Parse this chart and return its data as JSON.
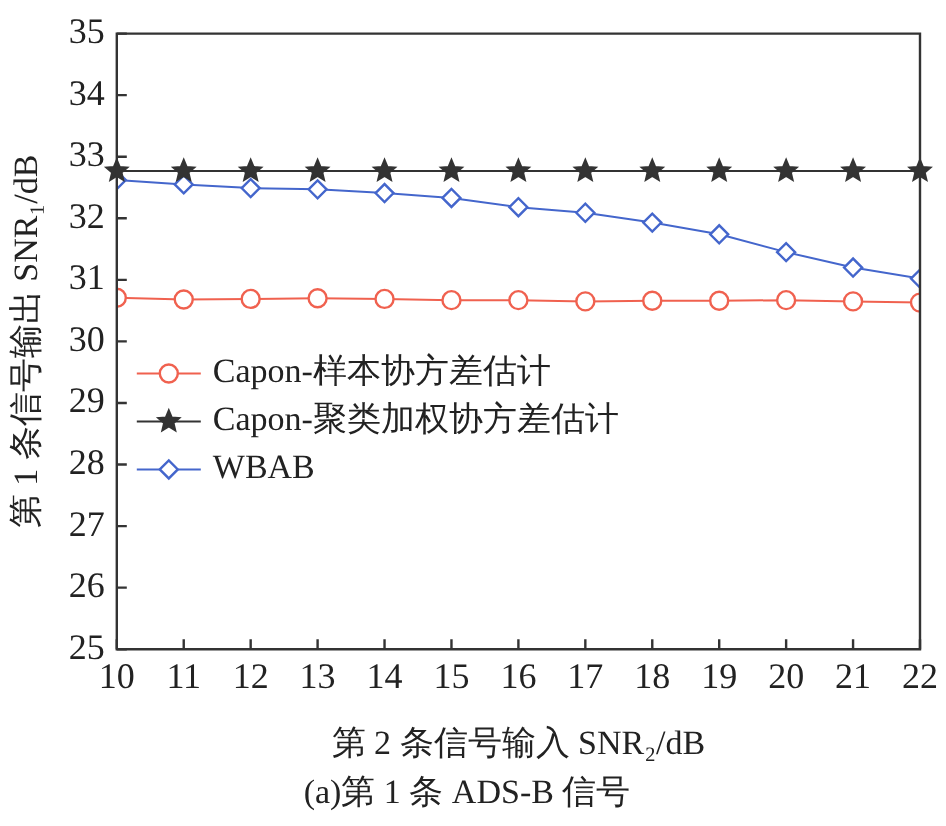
{
  "chart_data": {
    "type": "line",
    "title": "(a)第 1 条 ADS-B 信号",
    "xlabel": "第 2 条信号输入 SNR₂/dB",
    "ylabel": "第 1 条信号输出 SNR₁/dB",
    "x": [
      10,
      11,
      12,
      13,
      14,
      15,
      16,
      17,
      18,
      19,
      20,
      21,
      22
    ],
    "series": [
      {
        "name": "Capon-样本协方差估计",
        "color": "#f0614f",
        "marker": "circle",
        "values": [
          30.71,
          30.68,
          30.69,
          30.7,
          30.69,
          30.67,
          30.67,
          30.65,
          30.66,
          30.66,
          30.67,
          30.65,
          30.63
        ]
      },
      {
        "name": "Capon-聚类加权协方差估计",
        "color": "#333333",
        "marker": "star",
        "values": [
          32.77,
          32.77,
          32.77,
          32.77,
          32.77,
          32.77,
          32.77,
          32.77,
          32.77,
          32.77,
          32.77,
          32.77,
          32.77
        ]
      },
      {
        "name": "WBAB",
        "color": "#4466cc",
        "marker": "diamond",
        "values": [
          32.62,
          32.55,
          32.49,
          32.47,
          32.41,
          32.33,
          32.18,
          32.09,
          31.93,
          31.74,
          31.45,
          31.2,
          31.02
        ]
      }
    ],
    "xlim": [
      10,
      22
    ],
    "xticks": [
      10,
      11,
      12,
      13,
      14,
      15,
      16,
      17,
      18,
      19,
      20,
      21,
      22
    ],
    "ylim": [
      25,
      35
    ],
    "yticks": [
      25,
      26,
      27,
      28,
      29,
      30,
      31,
      32,
      33,
      34,
      35
    ],
    "grid": false,
    "legend": "left",
    "line_style": "solid"
  }
}
